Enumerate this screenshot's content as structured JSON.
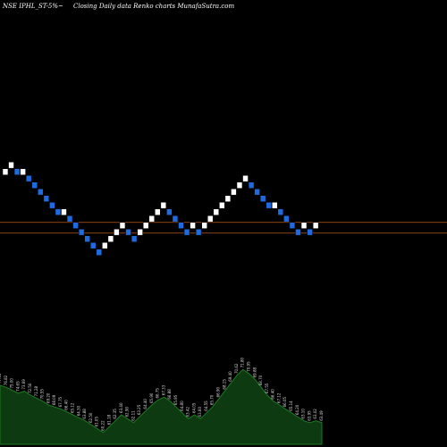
{
  "header": {
    "symbol": "NSE IPHL_ST-5%~",
    "description": "Closing Daily data  Renko  charts MunafaSutra.com"
  },
  "colors": {
    "background": "#000000",
    "up_brick": "#ffffff",
    "down_brick": "#1e6be0",
    "brick_outline": "#000000",
    "level_line": "#b85a1a",
    "volume_fill": "#0d3a10",
    "volume_line": "#1e7a22"
  },
  "chart_data": {
    "type": "renko",
    "title": "NSE IPHL_ST-5%~",
    "subtitle": "Closing Daily data  Renko  charts MunafaSutra.com",
    "y_range": [
      0,
      12
    ],
    "grid": false,
    "bricks": [
      {
        "dir": "up",
        "level": 9
      },
      {
        "dir": "up",
        "level": 10
      },
      {
        "dir": "down",
        "level": 9
      },
      {
        "dir": "up",
        "level": 9
      },
      {
        "dir": "down",
        "level": 8
      },
      {
        "dir": "down",
        "level": 7
      },
      {
        "dir": "down",
        "level": 6
      },
      {
        "dir": "down",
        "level": 5
      },
      {
        "dir": "down",
        "level": 4
      },
      {
        "dir": "down",
        "level": 3
      },
      {
        "dir": "up",
        "level": 3
      },
      {
        "dir": "down",
        "level": 2
      },
      {
        "dir": "down",
        "level": 1
      },
      {
        "dir": "down",
        "level": 0
      },
      {
        "dir": "down",
        "level": -1
      },
      {
        "dir": "down",
        "level": -2
      },
      {
        "dir": "down",
        "level": -3
      },
      {
        "dir": "up",
        "level": -2
      },
      {
        "dir": "up",
        "level": -1
      },
      {
        "dir": "up",
        "level": 0
      },
      {
        "dir": "up",
        "level": 1
      },
      {
        "dir": "down",
        "level": 0
      },
      {
        "dir": "down",
        "level": -1
      },
      {
        "dir": "up",
        "level": 0
      },
      {
        "dir": "up",
        "level": 1
      },
      {
        "dir": "up",
        "level": 2
      },
      {
        "dir": "up",
        "level": 3
      },
      {
        "dir": "up",
        "level": 4
      },
      {
        "dir": "down",
        "level": 3
      },
      {
        "dir": "down",
        "level": 2
      },
      {
        "dir": "down",
        "level": 1
      },
      {
        "dir": "down",
        "level": 0
      },
      {
        "dir": "up",
        "level": 1
      },
      {
        "dir": "down",
        "level": 0
      },
      {
        "dir": "up",
        "level": 1
      },
      {
        "dir": "up",
        "level": 2
      },
      {
        "dir": "up",
        "level": 3
      },
      {
        "dir": "up",
        "level": 4
      },
      {
        "dir": "up",
        "level": 5
      },
      {
        "dir": "up",
        "level": 6
      },
      {
        "dir": "up",
        "level": 7
      },
      {
        "dir": "up",
        "level": 8
      },
      {
        "dir": "down",
        "level": 7
      },
      {
        "dir": "down",
        "level": 6
      },
      {
        "dir": "down",
        "level": 5
      },
      {
        "dir": "down",
        "level": 4
      },
      {
        "dir": "up",
        "level": 4
      },
      {
        "dir": "down",
        "level": 3
      },
      {
        "dir": "down",
        "level": 2
      },
      {
        "dir": "down",
        "level": 1
      },
      {
        "dir": "down",
        "level": 0
      },
      {
        "dir": "up",
        "level": 1
      },
      {
        "dir": "down",
        "level": 0
      },
      {
        "dir": "up",
        "level": 1
      }
    ],
    "level_lines": [
      1.5,
      -0.1
    ],
    "volume": [
      60,
      58,
      55,
      52,
      54,
      50,
      47,
      44,
      40,
      38,
      36,
      33,
      30,
      27,
      24,
      20,
      16,
      12,
      18,
      24,
      30,
      26,
      22,
      28,
      34,
      40,
      45,
      48,
      44,
      38,
      32,
      26,
      30,
      26,
      32,
      38,
      46,
      54,
      62,
      70,
      76,
      72,
      66,
      58,
      50,
      44,
      40,
      36,
      32,
      28,
      24,
      22,
      24,
      22
    ],
    "volume_labels": [
      "77.05",
      "76.82",
      "75.00",
      "74.65",
      "73.69",
      "72.50",
      "71.28",
      "70.55",
      "69.20",
      "68.09",
      "67.75",
      "66.40",
      "65.12",
      "64.30",
      "63.88",
      "62.50",
      "61.05",
      "60.22",
      "61.18",
      "62.35",
      "63.40",
      "62.90",
      "62.11",
      "63.25",
      "64.40",
      "65.90",
      "66.75",
      "67.33",
      "66.88",
      "65.95",
      "64.80",
      "63.42",
      "64.05",
      "63.60",
      "64.55",
      "65.70",
      "66.90",
      "68.15",
      "69.40",
      "70.62",
      "71.80",
      "70.95",
      "69.88",
      "68.70",
      "67.55",
      "66.40",
      "67.12",
      "66.05",
      "65.14",
      "64.20",
      "63.10",
      "63.95",
      "63.02",
      "63.49"
    ]
  }
}
